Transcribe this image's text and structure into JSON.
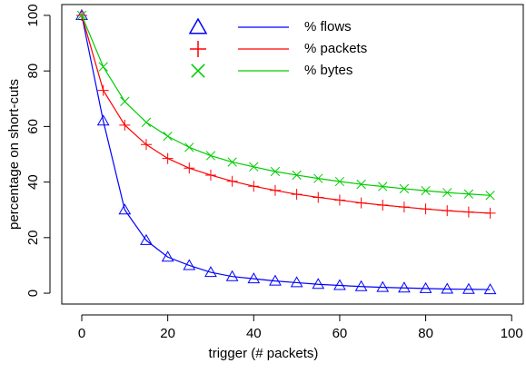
{
  "chart_data": {
    "type": "line",
    "x_label": "trigger (# packets)",
    "y_label": "percentage on short-cuts",
    "x": [
      0,
      5,
      10,
      15,
      20,
      25,
      30,
      35,
      40,
      45,
      50,
      55,
      60,
      65,
      70,
      75,
      80,
      85,
      90,
      95
    ],
    "series": [
      {
        "name": "% flows",
        "color": "#0000ff",
        "marker": "triangle",
        "values": [
          100,
          62,
          30,
          19,
          13,
          10,
          7.5,
          6,
          5.2,
          4.4,
          3.8,
          3.2,
          2.8,
          2.4,
          2.1,
          1.9,
          1.7,
          1.5,
          1.4,
          1.3
        ]
      },
      {
        "name": "% packets",
        "color": "#ff0000",
        "marker": "plus",
        "values": [
          100,
          73,
          60.5,
          53.5,
          48.5,
          45,
          42.5,
          40.3,
          38.5,
          37,
          35.6,
          34.5,
          33.5,
          32.5,
          31.7,
          31,
          30.3,
          29.7,
          29.2,
          28.8
        ]
      },
      {
        "name": "% bytes",
        "color": "#00cc00",
        "marker": "cross",
        "values": [
          100,
          81.5,
          69,
          61.5,
          56.5,
          52.5,
          49.5,
          47.2,
          45.5,
          43.8,
          42.5,
          41.3,
          40.2,
          39.2,
          38.4,
          37.6,
          36.9,
          36.2,
          35.7,
          35.2
        ]
      }
    ],
    "xlim": [
      -4.65,
      102.7
    ],
    "ylim": [
      -3.9,
      103.9
    ],
    "xticks": [
      0,
      20,
      40,
      60,
      80,
      100
    ],
    "yticks": [
      0,
      20,
      40,
      60,
      80,
      100
    ],
    "grid": false,
    "legend": "top"
  }
}
